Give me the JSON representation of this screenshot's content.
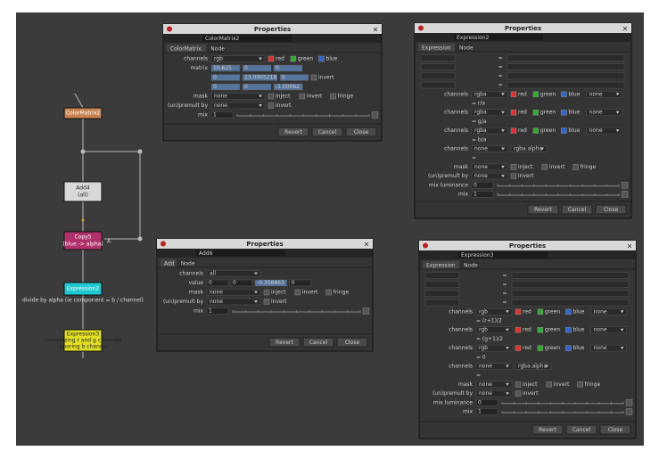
{
  "node_graph": {
    "nodes": [
      {
        "label": "ColorMatrix2",
        "color": "#c8834f"
      },
      {
        "label": "Add4",
        "sub": "(all)",
        "color": "#d9d9d9"
      },
      {
        "label": "Copy5",
        "sub": "(blue -> alpha)",
        "color": "#b0306c",
        "input_label": "A"
      },
      {
        "label": "Expression2",
        "color": "#1ec8cf",
        "caption": [
          "divide by alpha (ie component = b / channel)"
        ]
      },
      {
        "label": "Expression3",
        "color": "#e2e022",
        "caption": [
          "normalizing r and g channels",
          "ignoring b channel"
        ]
      }
    ]
  },
  "panels": [
    {
      "title": "Properties",
      "close": "×",
      "node": "ColorMatrix2",
      "tabs": [
        "ColorMatrix",
        "Node"
      ],
      "rows": [
        {
          "label": "channels",
          "items": [
            {
              "select": "rgb"
            },
            {
              "check": "red",
              "color": "#d33"
            },
            {
              "check": "green",
              "color": "#3a3"
            },
            {
              "check": "blue",
              "color": "#36c"
            }
          ]
        },
        {
          "label": "matrix",
          "items": [
            {
              "cell": "10.625"
            },
            {
              "cell": "0"
            },
            {
              "cell": "0"
            }
          ]
        },
        {
          "items": [
            {
              "cell": "0"
            },
            {
              "cell": "23.0005218"
            },
            {
              "cell": "0"
            },
            {
              "check": "invert"
            }
          ]
        },
        {
          "items": [
            {
              "cell": "0"
            },
            {
              "cell": "0"
            },
            {
              "cell": "-1.00062"
            }
          ]
        },
        {
          "label": "mask",
          "items": [
            {
              "select": "none"
            },
            {
              "check": "inject"
            },
            {
              "check": "invert"
            },
            {
              "check": "fringe"
            }
          ]
        },
        {
          "label": "(un)premult by",
          "items": [
            {
              "select": "none"
            },
            {
              "check": "invert"
            }
          ]
        },
        {
          "label": "mix",
          "items": [
            {
              "input": "1"
            }
          ],
          "slider": true
        }
      ],
      "buttons": [
        "Revert",
        "Cancel",
        "Close"
      ]
    },
    {
      "title": "Properties",
      "close": "×",
      "node": "Expression2",
      "tabs": [
        "Expression",
        "Node"
      ],
      "rows": [
        {
          "equation": "="
        },
        {
          "equation": "="
        },
        {
          "equation": "="
        },
        {
          "equation": "="
        },
        {
          "label": "channels",
          "items": [
            {
              "select": "rgba"
            },
            {
              "check": "red",
              "color": "#d33"
            },
            {
              "check": "green",
              "color": "#3a3"
            },
            {
              "check": "blue",
              "color": "#36c"
            },
            {
              "select": "none"
            }
          ]
        },
        {
          "result": "= r/a"
        },
        {
          "label": "channels",
          "items": [
            {
              "select": "rgba"
            },
            {
              "check": "red",
              "color": "#d33"
            },
            {
              "check": "green",
              "color": "#3a3"
            },
            {
              "check": "blue",
              "color": "#36c"
            },
            {
              "select": "none"
            }
          ]
        },
        {
          "result": "= g/a"
        },
        {
          "label": "channels",
          "items": [
            {
              "select": "rgba"
            },
            {
              "check": "red",
              "color": "#d33"
            },
            {
              "check": "green",
              "color": "#3a3"
            },
            {
              "check": "blue",
              "color": "#36c"
            },
            {
              "select": "none"
            }
          ]
        },
        {
          "result": "= b/a"
        },
        {
          "label": "channels",
          "items": [
            {
              "select": "none"
            },
            {
              "select": "rgba.alpha"
            }
          ]
        },
        {
          "result": "="
        },
        {
          "label": "mask",
          "items": [
            {
              "select": "none"
            },
            {
              "check": "inject"
            },
            {
              "check": "invert"
            },
            {
              "check": "fringe"
            }
          ]
        },
        {
          "label": "(un)premult by",
          "items": [
            {
              "select": "none"
            },
            {
              "check": "invert"
            }
          ]
        },
        {
          "label": "mix luminance",
          "items": [
            {
              "input": "0"
            }
          ],
          "slider": true
        },
        {
          "label": "mix",
          "items": [
            {
              "input": "1"
            }
          ],
          "slider": true
        }
      ],
      "buttons": [
        "Revert",
        "Cancel",
        "Close"
      ]
    },
    {
      "title": "Properties",
      "close": "×",
      "node": "Add6",
      "tabs": [
        "Add",
        "Node"
      ],
      "rows": [
        {
          "label": "channels",
          "items": [
            {
              "select": "all"
            }
          ]
        },
        {
          "label": "value",
          "items": [
            {
              "input": "0"
            },
            {
              "input": "0"
            },
            {
              "cell": "-0.358863"
            },
            {
              "input": "0"
            }
          ]
        },
        {
          "label": "mask",
          "items": [
            {
              "select": "none"
            },
            {
              "check": "inject"
            },
            {
              "check": "invert"
            },
            {
              "check": "fringe"
            }
          ]
        },
        {
          "label": "(un)premult by",
          "items": [
            {
              "select": "none"
            },
            {
              "check": "invert"
            }
          ]
        },
        {
          "label": "mix",
          "items": [
            {
              "input": "1"
            }
          ],
          "slider": true
        }
      ],
      "buttons": [
        "Revert",
        "Cancel",
        "Close"
      ]
    },
    {
      "title": "Properties",
      "close": "×",
      "node": "Expression3",
      "tabs": [
        "Expression",
        "Node"
      ],
      "rows": [
        {
          "equation": "="
        },
        {
          "equation": "="
        },
        {
          "equation": "="
        },
        {
          "equation": "="
        },
        {
          "label": "channels",
          "items": [
            {
              "select": "rgb"
            },
            {
              "check": "red",
              "color": "#d33"
            },
            {
              "check": "green",
              "color": "#3a3"
            },
            {
              "check": "blue",
              "color": "#36c"
            },
            {
              "select": "none"
            }
          ]
        },
        {
          "result": "= (r+1)/2"
        },
        {
          "label": "channels",
          "items": [
            {
              "select": "rgb"
            },
            {
              "check": "red",
              "color": "#d33"
            },
            {
              "check": "green",
              "color": "#3a3"
            },
            {
              "check": "blue",
              "color": "#36c"
            },
            {
              "select": "none"
            }
          ]
        },
        {
          "result": "= (g+1)/2"
        },
        {
          "label": "channels",
          "items": [
            {
              "select": "rgb"
            },
            {
              "check": "red",
              "color": "#d33"
            },
            {
              "check": "green",
              "color": "#3a3"
            },
            {
              "check": "blue",
              "color": "#36c"
            },
            {
              "select": "none"
            }
          ]
        },
        {
          "result": "= 0"
        },
        {
          "label": "channels",
          "items": [
            {
              "select": "none"
            },
            {
              "select": "rgba.alpha"
            }
          ]
        },
        {
          "result": "="
        },
        {
          "label": "mask",
          "items": [
            {
              "select": "none"
            },
            {
              "check": "inject"
            },
            {
              "check": "invert"
            },
            {
              "check": "fringe"
            }
          ]
        },
        {
          "label": "(un)premult by",
          "items": [
            {
              "select": "none"
            },
            {
              "check": "invert"
            }
          ]
        },
        {
          "label": "mix luminance",
          "items": [
            {
              "input": "0"
            }
          ],
          "slider": true
        },
        {
          "label": "mix",
          "items": [
            {
              "input": "1"
            }
          ],
          "slider": true
        }
      ],
      "buttons": [
        "Revert",
        "Cancel",
        "Close"
      ]
    }
  ]
}
